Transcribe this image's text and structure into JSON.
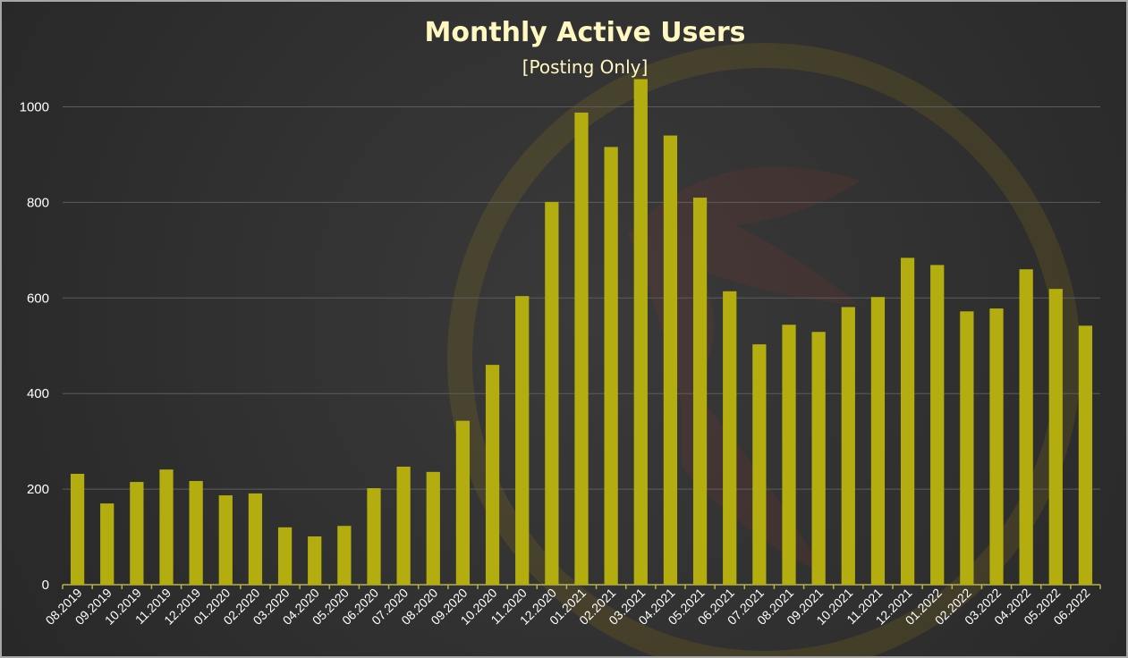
{
  "chart_data": {
    "type": "bar",
    "title": "Monthly Active Users",
    "subtitle": "[Posting Only]",
    "xlabel": "",
    "ylabel": "",
    "ylim": [
      0,
      1080
    ],
    "yticks": [
      0,
      200,
      400,
      600,
      800,
      1000
    ],
    "grid": true,
    "legend": "none",
    "colors": {
      "bar": "#b4ad10",
      "background": "#323232",
      "title": "#fff8c0",
      "axis": "#b8b14a",
      "grid": "#5d5d5d"
    },
    "categories": [
      "08.2019",
      "09.2019",
      "10.2019",
      "11.2019",
      "12.2019",
      "01.2020",
      "02.2020",
      "03.2020",
      "04.2020",
      "05.2020",
      "06.2020",
      "07.2020",
      "08.2020",
      "09.2020",
      "10.2020",
      "11.2020",
      "12.2020",
      "01.2021",
      "02.2021",
      "03.2021",
      "04.2021",
      "05.2021",
      "06.2021",
      "07.2021",
      "08.2021",
      "09.2021",
      "10.2021",
      "11.2021",
      "12.2021",
      "01.2022",
      "02.2022",
      "03.2022",
      "04.2022",
      "05.2022",
      "06.2022"
    ],
    "values": [
      232,
      170,
      215,
      241,
      217,
      187,
      191,
      120,
      101,
      123,
      202,
      247,
      236,
      343,
      460,
      604,
      801,
      988,
      916,
      1058,
      940,
      810,
      614,
      503,
      544,
      529,
      581,
      602,
      684,
      669,
      572,
      578,
      660,
      619,
      542
    ]
  }
}
